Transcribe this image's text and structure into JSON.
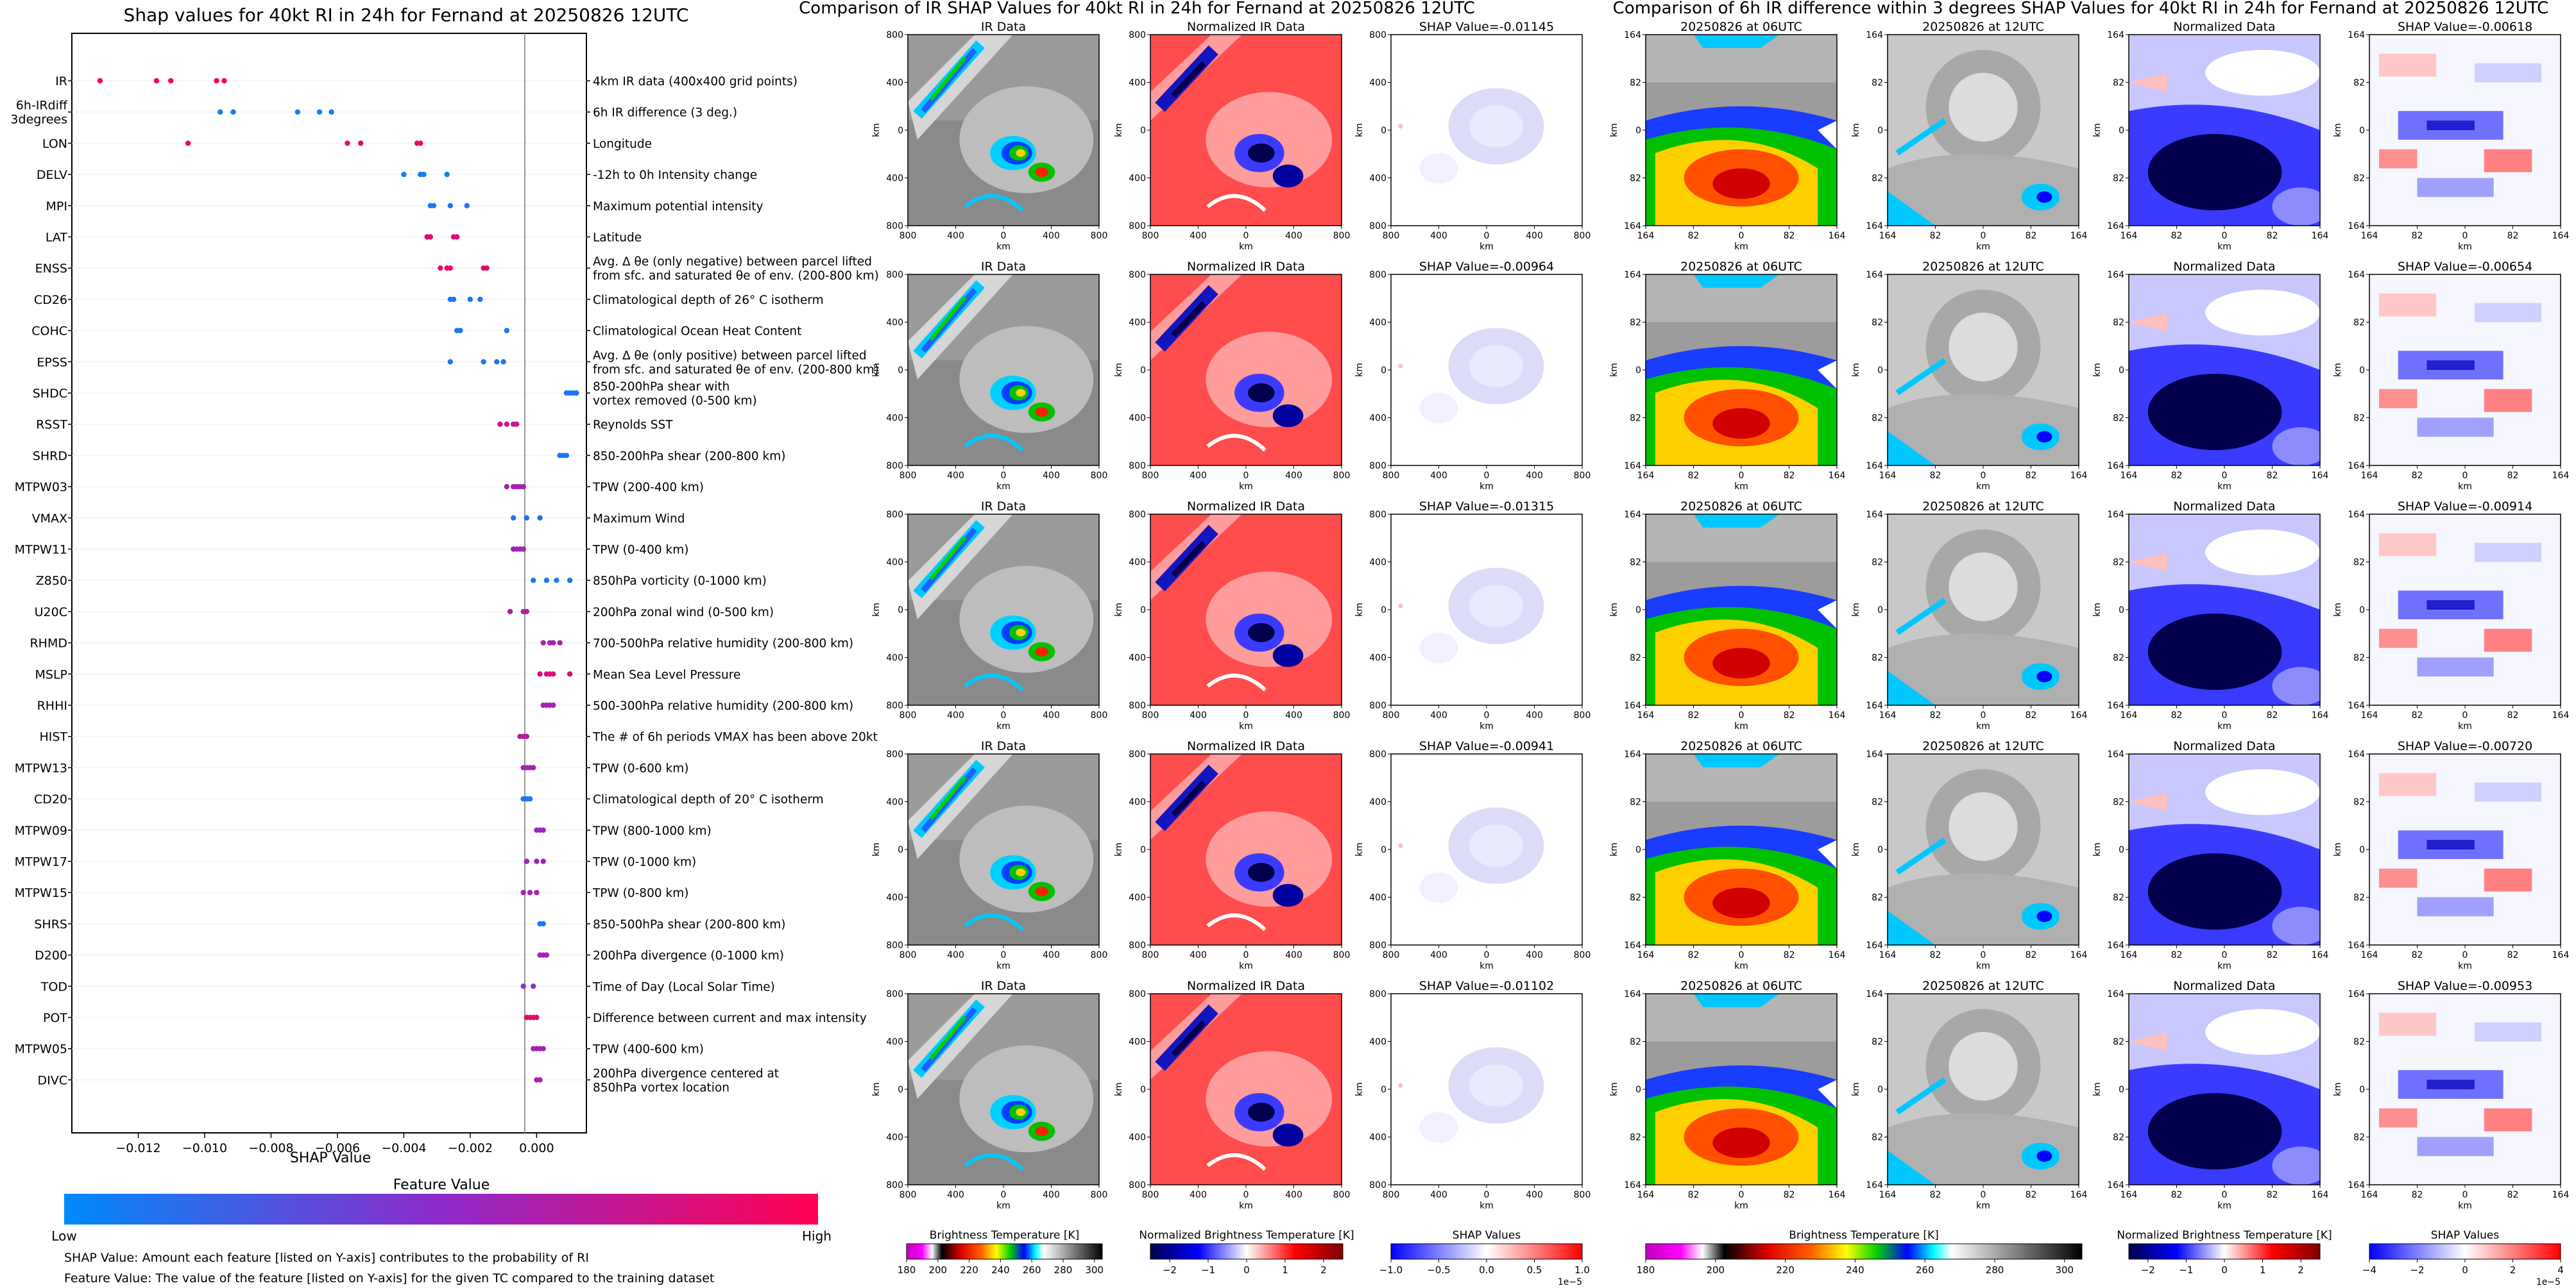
{
  "left_panel": {
    "title": "Shap values for 40kt RI in 24h for Fernand at 20250826 12UTC",
    "xlabel": "SHAP Value",
    "colorbar_title": "Feature Value",
    "colorbar_low": "Low",
    "colorbar_high": "High",
    "note1": "SHAP Value: Amount each feature [listed on Y-axis] contributes to the probability of RI",
    "note2": "Feature Value: The value of the feature [listed on Y-axis] for the given TC compared to the training dataset"
  },
  "chart_data": {
    "type": "scatter",
    "title": "Shap values for 40kt RI in 24h for Fernand at 20250826 12UTC",
    "xlabel": "SHAP Value",
    "xlim": [
      -0.014,
      0.0015
    ],
    "xticks": [
      -0.012,
      -0.01,
      -0.008,
      -0.006,
      -0.004,
      -0.002,
      0.0
    ],
    "xtick_labels": [
      "−0.012",
      "−0.010",
      "−0.008",
      "−0.006",
      "−0.004",
      "−0.002",
      "0.000"
    ],
    "features": [
      {
        "name": "IR",
        "desc": "4km IR data (400x400 grid points)",
        "fv": 0.95,
        "values": [
          -0.01315,
          -0.01145,
          -0.01102,
          -0.00964,
          -0.00941
        ]
      },
      {
        "name": "6h-IRdiff 3degrees",
        "desc": "6h IR difference (3 deg.)",
        "fv": 0.05,
        "values": [
          -0.00953,
          -0.00914,
          -0.0072,
          -0.00654,
          -0.00618
        ]
      },
      {
        "name": "LON",
        "desc": "Longitude",
        "fv": 0.9,
        "values": [
          -0.0105,
          -0.0057,
          -0.0053,
          -0.0036,
          -0.0035
        ]
      },
      {
        "name": "DELV",
        "desc": "-12h to 0h Intensity change",
        "fv": 0.05,
        "values": [
          -0.004,
          -0.0035,
          -0.0034,
          -0.0027
        ]
      },
      {
        "name": "MPI",
        "desc": "Maximum potential intensity",
        "fv": 0.1,
        "values": [
          -0.0032,
          -0.0031,
          -0.0026,
          -0.0021
        ]
      },
      {
        "name": "LAT",
        "desc": "Latitude",
        "fv": 0.9,
        "values": [
          -0.0033,
          -0.0032,
          -0.0025,
          -0.0024
        ]
      },
      {
        "name": "ENSS",
        "desc": "Avg. Δ θe (only negative) between parcel lifted\nfrom sfc. and saturated θe of env. (200-800 km)",
        "fv": 0.9,
        "values": [
          -0.0029,
          -0.0027,
          -0.0026,
          -0.0016,
          -0.0015
        ]
      },
      {
        "name": "CD26",
        "desc": "Climatological depth of 26° C isotherm",
        "fv": 0.1,
        "values": [
          -0.0026,
          -0.0025,
          -0.002,
          -0.0017
        ]
      },
      {
        "name": "COHC",
        "desc": "Climatological Ocean Heat Content",
        "fv": 0.1,
        "values": [
          -0.0024,
          -0.0023,
          -0.0009
        ]
      },
      {
        "name": "EPSS",
        "desc": "Avg. Δ θe (only positive) between parcel lifted\nfrom sfc. and saturated θe of env. (200-800 km)",
        "fv": 0.1,
        "values": [
          -0.0026,
          -0.0016,
          -0.0012,
          -0.001
        ]
      },
      {
        "name": "SHDC",
        "desc": "850-200hPa shear with\nvortex removed (0-500 km)",
        "fv": 0.1,
        "values": [
          0.0009,
          0.001,
          0.0011,
          0.0012
        ]
      },
      {
        "name": "RSST",
        "desc": "Reynolds SST",
        "fv": 0.75,
        "values": [
          -0.0011,
          -0.0009,
          -0.0007,
          -0.0006
        ]
      },
      {
        "name": "SHRD",
        "desc": "850-200hPa shear (200-800 km)",
        "fv": 0.1,
        "values": [
          0.0007,
          0.0008,
          0.0009
        ]
      },
      {
        "name": "MTPW03",
        "desc": "TPW (200-400 km)",
        "fv": 0.6,
        "values": [
          -0.0009,
          -0.0007,
          -0.0006,
          -0.0005,
          -0.0004
        ]
      },
      {
        "name": "VMAX",
        "desc": "Maximum Wind",
        "fv": 0.15,
        "values": [
          -0.0007,
          -0.0003,
          0.0001
        ]
      },
      {
        "name": "MTPW11",
        "desc": "TPW (0-400 km)",
        "fv": 0.6,
        "values": [
          -0.0007,
          -0.0006,
          -0.0005,
          -0.0004
        ]
      },
      {
        "name": "Z850",
        "desc": "850hPa vorticity (0-1000 km)",
        "fv": 0.1,
        "values": [
          -0.0001,
          0.0003,
          0.0006,
          0.001
        ]
      },
      {
        "name": "U20C",
        "desc": "200hPa zonal wind (0-500 km)",
        "fv": 0.65,
        "values": [
          -0.0008,
          -0.0004,
          -0.0003
        ]
      },
      {
        "name": "RHMD",
        "desc": "700-500hPa relative humidity (200-800 km)",
        "fv": 0.6,
        "values": [
          0.0002,
          0.0004,
          0.0005,
          0.0007
        ]
      },
      {
        "name": "MSLP",
        "desc": "Mean Sea Level Pressure",
        "fv": 0.85,
        "values": [
          0.0001,
          0.0003,
          0.0004,
          0.0005,
          0.001
        ]
      },
      {
        "name": "RHHI",
        "desc": "500-300hPa relative humidity (200-800 km)",
        "fv": 0.6,
        "values": [
          0.0002,
          0.0003,
          0.0004,
          0.0005
        ]
      },
      {
        "name": "HIST",
        "desc": "The # of 6h periods VMAX has been above 20kt",
        "fv": 0.7,
        "values": [
          -0.0005,
          -0.0004,
          -0.0003
        ]
      },
      {
        "name": "MTPW13",
        "desc": "TPW (0-600 km)",
        "fv": 0.6,
        "values": [
          -0.0004,
          -0.0003,
          -0.0002,
          -0.0001
        ]
      },
      {
        "name": "CD20",
        "desc": "Climatological depth of 20° C isotherm",
        "fv": 0.1,
        "values": [
          -0.0004,
          -0.0003,
          -0.0002
        ]
      },
      {
        "name": "MTPW09",
        "desc": "TPW (800-1000 km)",
        "fv": 0.55,
        "values": [
          0.0,
          0.0001,
          0.0002
        ]
      },
      {
        "name": "MTPW17",
        "desc": "TPW (0-1000 km)",
        "fv": 0.55,
        "values": [
          -0.0003,
          0.0,
          0.0002
        ]
      },
      {
        "name": "MTPW15",
        "desc": "TPW (0-800 km)",
        "fv": 0.6,
        "values": [
          -0.0004,
          -0.0002,
          0.0
        ]
      },
      {
        "name": "SHRS",
        "desc": "850-500hPa shear (200-800 km)",
        "fv": 0.1,
        "values": [
          0.0001,
          0.0002
        ]
      },
      {
        "name": "D200",
        "desc": "200hPa divergence (0-1000 km)",
        "fv": 0.6,
        "values": [
          0.0001,
          0.0002,
          0.0003
        ]
      },
      {
        "name": "TOD",
        "desc": "Time of Day (Local Solar Time)",
        "fv": 0.45,
        "values": [
          -0.0004,
          -0.0001
        ]
      },
      {
        "name": "POT",
        "desc": "Difference between current and max intensity",
        "fv": 0.9,
        "values": [
          -0.0003,
          -0.0002,
          -0.0001,
          0.0
        ]
      },
      {
        "name": "MTPW05",
        "desc": "TPW (400-600 km)",
        "fv": 0.6,
        "values": [
          -0.0001,
          0.0,
          0.0001,
          0.0002
        ]
      },
      {
        "name": "DIVC",
        "desc": "200hPa divergence centered at\n850hPa vortex location",
        "fv": 0.6,
        "values": [
          0.0,
          0.0001
        ]
      }
    ]
  },
  "middle_panel": {
    "title": "Comparison of IR SHAP Values for 40kt RI in 24h for Fernand at 20250826 12UTC",
    "col_titles": [
      "IR Data",
      "Normalized IR Data"
    ],
    "shap_values": [
      "SHAP Value=-0.01145",
      "SHAP Value=-0.00964",
      "SHAP Value=-0.01315",
      "SHAP Value=-0.00941",
      "SHAP Value=-0.01102"
    ],
    "ticks": [
      "800",
      "400",
      "0",
      "400",
      "800"
    ],
    "axis_label": "km",
    "cbar1_label": "Brightness Temperature [K]",
    "cbar1_ticks": [
      "180",
      "200",
      "220",
      "240",
      "260",
      "280",
      "300"
    ],
    "cbar2_label": "Normalized Brightness Temperature [K]",
    "cbar2_ticks": [
      "−2",
      "−1",
      "0",
      "1",
      "2"
    ],
    "cbar3_label": "SHAP Values",
    "cbar3_ticks": [
      "−1.0",
      "−0.5",
      "0.0",
      "0.5",
      "1.0"
    ],
    "cbar3_exp": "1e−5"
  },
  "right_panel": {
    "title": "Comparison of 6h IR difference within 3 degrees SHAP Values for 40kt RI in 24h for Fernand at 20250826 12UTC",
    "col_titles": [
      "20250826 at 06UTC",
      "20250826 at 12UTC",
      "Normalized Data"
    ],
    "shap_values": [
      "SHAP Value=-0.00618",
      "SHAP Value=-0.00654",
      "SHAP Value=-0.00914",
      "SHAP Value=-0.00720",
      "SHAP Value=-0.00953"
    ],
    "ticks": [
      "164",
      "82",
      "0",
      "82",
      "164"
    ],
    "axis_label": "km",
    "cbar1_label": "Brightness Temperature [K]",
    "cbar1_ticks": [
      "180",
      "200",
      "220",
      "240",
      "260",
      "280",
      "300"
    ],
    "cbar2_label": "Normalized Brightness Temperature [K]",
    "cbar2_ticks": [
      "−2",
      "−1",
      "0",
      "1",
      "2"
    ],
    "cbar3_label": "SHAP Values",
    "cbar3_ticks": [
      "−4",
      "−2",
      "0",
      "2",
      "4"
    ],
    "cbar3_exp": "1e−5"
  },
  "colors": {
    "low": "#008afb",
    "mid": "#8e2ac9",
    "high": "#ff0052"
  }
}
